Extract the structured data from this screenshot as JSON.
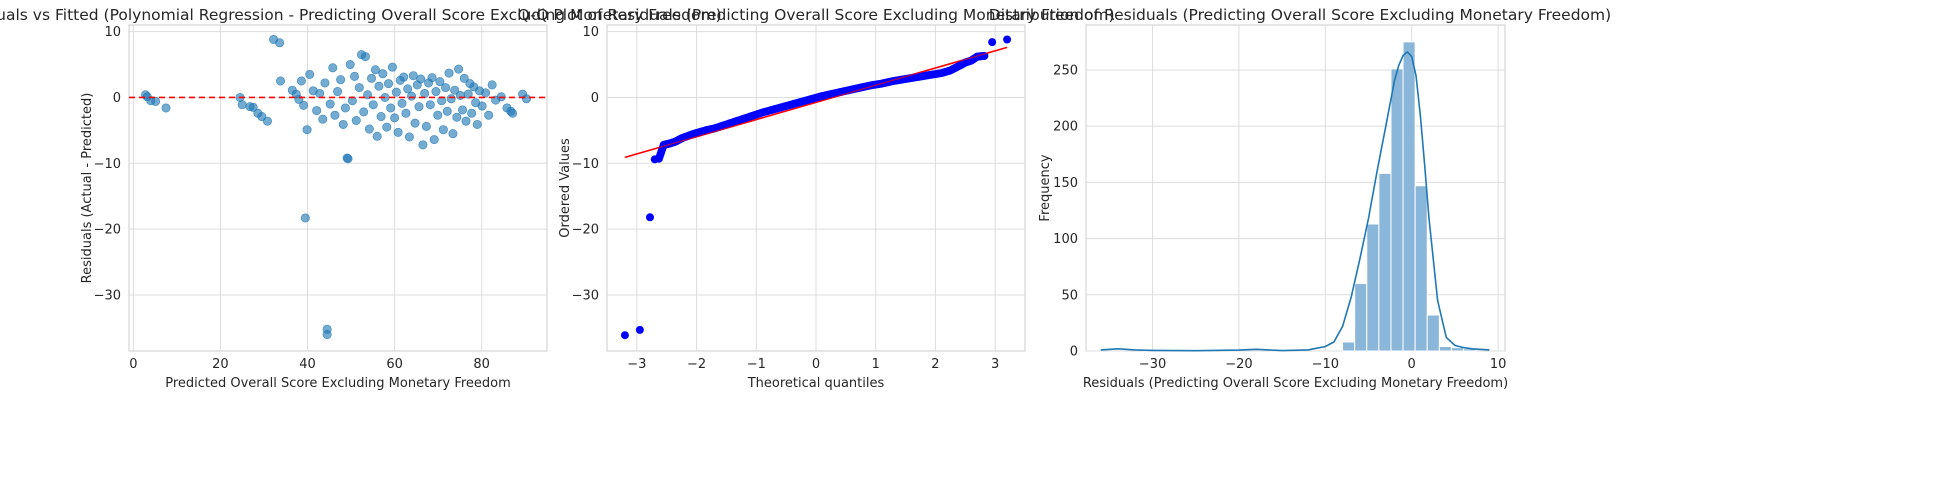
{
  "chart_data": [
    {
      "type": "scatter",
      "title": "Residuals vs Fitted (Polynomial Regression - Predicting Overall Score Excluding Monetary Freedom)",
      "xlabel": "Predicted Overall Score Excluding Monetary Freedom",
      "ylabel": "Residuals (Actual - Predicted)",
      "xlim": [
        -1,
        95
      ],
      "ylim": [
        -38.5,
        11
      ],
      "xticks": [
        0,
        20,
        40,
        60,
        80
      ],
      "xtick_labels": [
        "0",
        "20",
        "40",
        "60",
        "80"
      ],
      "yticks": [
        10,
        0,
        -10,
        -20,
        -30
      ],
      "ytick_labels": [
        "10",
        "0",
        "−10",
        "−20",
        "−30"
      ],
      "grid": true,
      "point_color": "#1f77b4",
      "reference_line": {
        "y": 0,
        "color": "#ff0000",
        "style": "dashed"
      },
      "series": [
        {
          "points": [
            [
              2.8,
              0.4
            ],
            [
              3.2,
              0.1
            ],
            [
              4.0,
              -0.5
            ],
            [
              5.1,
              -0.6
            ],
            [
              7.5,
              -1.6
            ],
            [
              24.5,
              0.0
            ],
            [
              25.0,
              -1.1
            ],
            [
              26.8,
              -1.4
            ],
            [
              27.5,
              -1.5
            ],
            [
              28.6,
              -2.4
            ],
            [
              29.5,
              -2.9
            ],
            [
              30.8,
              -3.6
            ],
            [
              32.2,
              8.8
            ],
            [
              33.6,
              8.3
            ],
            [
              33.8,
              2.5
            ],
            [
              36.5,
              1.1
            ],
            [
              37.4,
              0.5
            ],
            [
              38.0,
              -0.3
            ],
            [
              38.6,
              2.5
            ],
            [
              39.1,
              -1.2
            ],
            [
              39.5,
              -18.3
            ],
            [
              39.9,
              -4.9
            ],
            [
              40.5,
              3.5
            ],
            [
              41.3,
              1.0
            ],
            [
              42.1,
              -2.0
            ],
            [
              42.8,
              0.6
            ],
            [
              43.5,
              -3.3
            ],
            [
              44.0,
              2.2
            ],
            [
              44.5,
              -35.2
            ],
            [
              44.5,
              -36.0
            ],
            [
              45.2,
              -1.0
            ],
            [
              45.8,
              4.5
            ],
            [
              46.3,
              -2.7
            ],
            [
              46.9,
              0.9
            ],
            [
              47.6,
              2.7
            ],
            [
              48.2,
              -4.1
            ],
            [
              48.7,
              -1.6
            ],
            [
              49.1,
              -9.2
            ],
            [
              49.3,
              -9.3
            ],
            [
              49.8,
              5.0
            ],
            [
              50.3,
              -0.5
            ],
            [
              50.8,
              3.2
            ],
            [
              51.2,
              -3.5
            ],
            [
              51.9,
              1.5
            ],
            [
              52.4,
              6.5
            ],
            [
              52.9,
              -2.2
            ],
            [
              53.3,
              6.2
            ],
            [
              53.8,
              0.4
            ],
            [
              54.2,
              -4.8
            ],
            [
              54.7,
              2.9
            ],
            [
              55.1,
              -1.1
            ],
            [
              55.6,
              4.2
            ],
            [
              56.0,
              -5.9
            ],
            [
              56.4,
              1.7
            ],
            [
              56.9,
              -2.9
            ],
            [
              57.3,
              3.6
            ],
            [
              57.8,
              0.0
            ],
            [
              58.2,
              -4.5
            ],
            [
              58.6,
              2.1
            ],
            [
              59.1,
              -1.6
            ],
            [
              59.5,
              4.6
            ],
            [
              60.0,
              -3.1
            ],
            [
              60.4,
              0.8
            ],
            [
              60.8,
              -5.3
            ],
            [
              61.3,
              2.6
            ],
            [
              61.7,
              -0.9
            ],
            [
              62.1,
              3.1
            ],
            [
              62.6,
              -2.4
            ],
            [
              63.0,
              1.3
            ],
            [
              63.4,
              -6.0
            ],
            [
              63.9,
              0.2
            ],
            [
              64.3,
              3.3
            ],
            [
              64.7,
              -3.9
            ],
            [
              65.2,
              1.9
            ],
            [
              65.6,
              -1.4
            ],
            [
              66.0,
              2.8
            ],
            [
              66.5,
              -7.2
            ],
            [
              66.9,
              0.6
            ],
            [
              67.3,
              -4.4
            ],
            [
              67.8,
              2.2
            ],
            [
              68.2,
              -1.1
            ],
            [
              68.6,
              3.0
            ],
            [
              69.1,
              -6.4
            ],
            [
              69.5,
              0.9
            ],
            [
              69.9,
              -2.7
            ],
            [
              70.4,
              2.4
            ],
            [
              70.8,
              -0.5
            ],
            [
              71.2,
              -4.9
            ],
            [
              71.7,
              1.5
            ],
            [
              72.1,
              -2.1
            ],
            [
              72.5,
              3.7
            ],
            [
              73.0,
              -0.2
            ],
            [
              73.4,
              -5.5
            ],
            [
              73.8,
              1.1
            ],
            [
              74.3,
              -3.0
            ],
            [
              74.7,
              4.3
            ],
            [
              75.1,
              0.3
            ],
            [
              75.6,
              -1.9
            ],
            [
              76.0,
              2.9
            ],
            [
              76.4,
              -3.6
            ],
            [
              76.9,
              0.5
            ],
            [
              77.3,
              2.1
            ],
            [
              77.7,
              -2.4
            ],
            [
              78.2,
              1.6
            ],
            [
              78.6,
              -0.8
            ],
            [
              79.0,
              -4.1
            ],
            [
              79.5,
              1.0
            ],
            [
              80.1,
              -1.3
            ],
            [
              80.9,
              0.7
            ],
            [
              81.6,
              -2.7
            ],
            [
              82.4,
              1.9
            ],
            [
              83.2,
              -0.4
            ],
            [
              84.5,
              0.1
            ],
            [
              85.8,
              -1.6
            ],
            [
              86.7,
              -2.1
            ],
            [
              87.1,
              -2.4
            ],
            [
              89.4,
              0.5
            ],
            [
              90.3,
              -0.2
            ]
          ]
        }
      ]
    },
    {
      "type": "scatter",
      "title": "Q-Q Plot of Residuals (Predicting Overall Score Excluding Monetary Freedom)",
      "xlabel": "Theoretical quantiles",
      "ylabel": "Ordered Values",
      "xlim": [
        -3.5,
        3.5
      ],
      "ylim": [
        -38.5,
        11
      ],
      "xticks": [
        -3,
        -2,
        -1,
        0,
        1,
        2,
        3
      ],
      "xtick_labels": [
        "−3",
        "−2",
        "−1",
        "0",
        "1",
        "2",
        "3"
      ],
      "yticks": [
        10,
        0,
        -10,
        -20,
        -30
      ],
      "ytick_labels": [
        "10",
        "0",
        "−10",
        "−20",
        "−30"
      ],
      "grid": true,
      "point_color": "#0000ff",
      "fit_line": {
        "x": [
          -3.2,
          3.2
        ],
        "y": [
          -9.1,
          7.6
        ],
        "color": "#ff0000"
      },
      "series": [
        {
          "points": [
            [
              -3.2,
              -36.1
            ],
            [
              -2.95,
              -35.3
            ],
            [
              -2.78,
              -18.2
            ],
            [
              -2.7,
              -9.4
            ],
            [
              -2.63,
              -9.3
            ],
            [
              -2.55,
              -7.2
            ],
            [
              -2.45,
              -7.0
            ],
            [
              -2.35,
              -6.7
            ],
            [
              -2.25,
              -6.2
            ],
            [
              -2.1,
              -5.7
            ],
            [
              -2.0,
              -5.4
            ],
            [
              -1.85,
              -5.0
            ],
            [
              -1.7,
              -4.7
            ],
            [
              -1.5,
              -4.1
            ],
            [
              -1.3,
              -3.5
            ],
            [
              -1.1,
              -2.9
            ],
            [
              -0.9,
              -2.3
            ],
            [
              -0.7,
              -1.8
            ],
            [
              -0.5,
              -1.3
            ],
            [
              -0.3,
              -0.8
            ],
            [
              -0.1,
              -0.3
            ],
            [
              0.1,
              0.2
            ],
            [
              0.3,
              0.6
            ],
            [
              0.5,
              1.0
            ],
            [
              0.7,
              1.4
            ],
            [
              0.9,
              1.8
            ],
            [
              1.1,
              2.1
            ],
            [
              1.3,
              2.5
            ],
            [
              1.5,
              2.8
            ],
            [
              1.7,
              3.1
            ],
            [
              1.9,
              3.4
            ],
            [
              2.1,
              3.7
            ],
            [
              2.25,
              4.1
            ],
            [
              2.4,
              4.8
            ],
            [
              2.5,
              5.3
            ],
            [
              2.6,
              5.6
            ],
            [
              2.7,
              6.2
            ],
            [
              2.82,
              6.3
            ],
            [
              2.95,
              8.4
            ],
            [
              3.2,
              8.8
            ]
          ]
        }
      ]
    },
    {
      "type": "bar",
      "title": "Distribution of Residuals (Predicting Overall Score Excluding Monetary Freedom)",
      "xlabel": "Residuals (Predicting Overall Score Excluding Monetary Freedom)",
      "ylabel": "Frequency",
      "xlim": [
        -37.7,
        10.8
      ],
      "ylim": [
        0,
        290
      ],
      "xticks": [
        -30,
        -20,
        -10,
        0,
        10
      ],
      "xtick_labels": [
        "−30",
        "−20",
        "−10",
        "0",
        "10"
      ],
      "yticks": [
        0,
        50,
        100,
        150,
        200,
        250
      ],
      "ytick_labels": [
        "0",
        "50",
        "100",
        "150",
        "200",
        "250"
      ],
      "grid": true,
      "bar_color": "#8ab6d9",
      "kde_color": "#1f77b4",
      "bins": [
        {
          "x0": -8.0,
          "x1": -6.6,
          "count": 8
        },
        {
          "x0": -6.6,
          "x1": -5.2,
          "count": 60
        },
        {
          "x0": -5.2,
          "x1": -3.8,
          "count": 113
        },
        {
          "x0": -3.8,
          "x1": -2.4,
          "count": 158
        },
        {
          "x0": -2.4,
          "x1": -1.0,
          "count": 251
        },
        {
          "x0": -1.0,
          "x1": 0.4,
          "count": 275
        },
        {
          "x0": 0.4,
          "x1": 1.8,
          "count": 147
        },
        {
          "x0": 1.8,
          "x1": 3.2,
          "count": 32
        },
        {
          "x0": 3.2,
          "x1": 4.6,
          "count": 4
        },
        {
          "x0": 4.6,
          "x1": 6.0,
          "count": 3
        },
        {
          "x0": 6.0,
          "x1": 7.4,
          "count": 2
        }
      ],
      "kde": {
        "x": [
          -36.0,
          -34.0,
          -32.0,
          -30.0,
          -25.0,
          -20.0,
          -18.0,
          -15.0,
          -12.0,
          -10.0,
          -9.0,
          -8.0,
          -7.0,
          -6.0,
          -5.0,
          -4.0,
          -3.0,
          -2.0,
          -1.5,
          -1.0,
          -0.5,
          0.0,
          0.5,
          1.0,
          1.5,
          2.0,
          3.0,
          4.0,
          5.0,
          6.0,
          7.0,
          9.0
        ],
        "y": [
          1,
          2,
          1,
          0.5,
          0.3,
          0.8,
          1.5,
          0.4,
          1,
          4,
          8,
          22,
          48,
          82,
          118,
          160,
          200,
          240,
          254,
          263,
          266,
          262,
          245,
          210,
          165,
          118,
          45,
          12,
          5,
          3,
          2,
          1
        ]
      }
    }
  ]
}
